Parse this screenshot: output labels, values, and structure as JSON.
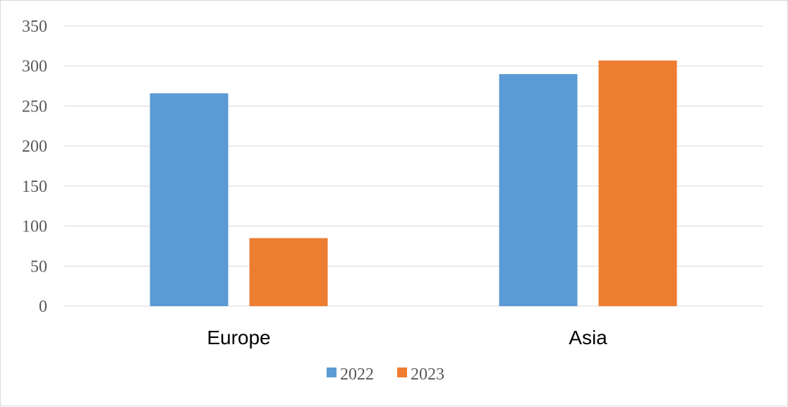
{
  "chart_data": {
    "type": "bar",
    "categories": [
      "Europe",
      "Asia"
    ],
    "series": [
      {
        "name": "2022",
        "values": [
          266,
          290
        ],
        "color": "#5b9bd5"
      },
      {
        "name": "2023",
        "values": [
          85,
          307
        ],
        "color": "#ed7d31"
      }
    ],
    "ylim": [
      0,
      350
    ],
    "yticks": [
      0,
      50,
      100,
      150,
      200,
      250,
      300,
      350
    ],
    "grid": true,
    "legend_position": "bottom"
  }
}
